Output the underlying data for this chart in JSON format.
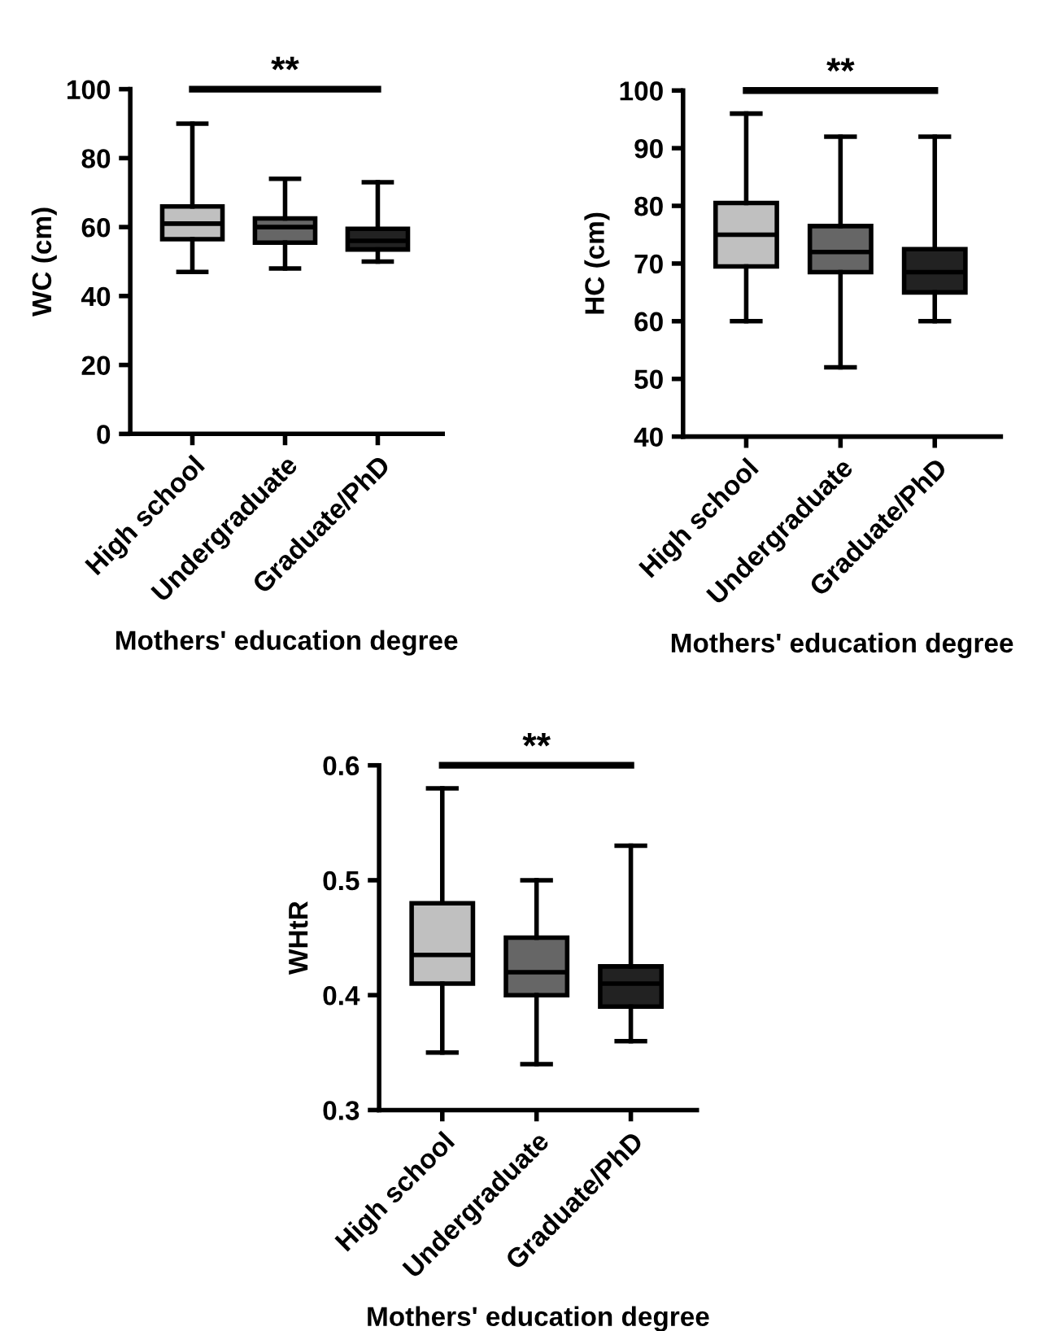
{
  "chart_data": [
    {
      "type": "box",
      "ylabel": "WC (cm)",
      "xlabel": "Mothers' education degree",
      "categories": [
        "High school",
        "Undergraduate",
        "Graduate/PhD"
      ],
      "colors": [
        "#c0c0c0",
        "#666666",
        "#222222"
      ],
      "ylim": [
        0,
        100
      ],
      "yticks": [
        0,
        20,
        40,
        60,
        80,
        100
      ],
      "annotations": [
        "**"
      ],
      "boxes": [
        {
          "low": 47,
          "q1": 56.5,
          "median": 61,
          "q3": 66,
          "high": 90
        },
        {
          "low": 48,
          "q1": 55.5,
          "median": 60,
          "q3": 62.5,
          "high": 74
        },
        {
          "low": 50,
          "q1": 53.5,
          "median": 56,
          "q3": 59.5,
          "high": 73
        }
      ]
    },
    {
      "type": "box",
      "ylabel": "HC (cm)",
      "xlabel": "Mothers' education degree",
      "categories": [
        "High school",
        "Undergraduate",
        "Graduate/PhD"
      ],
      "colors": [
        "#c0c0c0",
        "#666666",
        "#222222"
      ],
      "ylim": [
        40,
        100
      ],
      "yticks": [
        40,
        50,
        60,
        70,
        80,
        90,
        100
      ],
      "annotations": [
        "**"
      ],
      "boxes": [
        {
          "low": 60,
          "q1": 69.5,
          "median": 75,
          "q3": 80.5,
          "high": 96
        },
        {
          "low": 52,
          "q1": 68.5,
          "median": 72,
          "q3": 76.5,
          "high": 92
        },
        {
          "low": 60,
          "q1": 65,
          "median": 68.5,
          "q3": 72.5,
          "high": 92
        }
      ]
    },
    {
      "type": "box",
      "ylabel": "WHtR",
      "xlabel": "Mothers' education degree",
      "categories": [
        "High school",
        "Undergraduate",
        "Graduate/PhD"
      ],
      "colors": [
        "#c0c0c0",
        "#666666",
        "#222222"
      ],
      "ylim": [
        0.3,
        0.6
      ],
      "yticks": [
        0.3,
        0.4,
        0.5,
        0.6
      ],
      "annotations": [
        "**"
      ],
      "boxes": [
        {
          "low": 0.35,
          "q1": 0.41,
          "median": 0.435,
          "q3": 0.48,
          "high": 0.58
        },
        {
          "low": 0.34,
          "q1": 0.4,
          "median": 0.42,
          "q3": 0.45,
          "high": 0.5
        },
        {
          "low": 0.36,
          "q1": 0.39,
          "median": 0.41,
          "q3": 0.425,
          "high": 0.53
        }
      ]
    }
  ]
}
